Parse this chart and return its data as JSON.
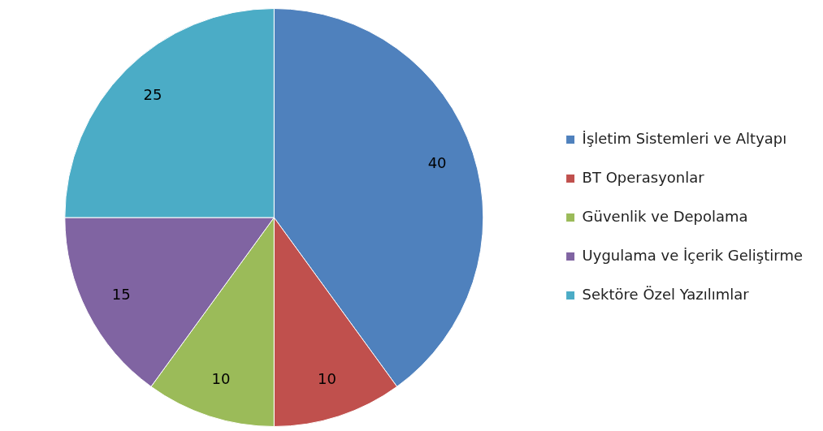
{
  "chart_data": {
    "type": "pie",
    "categories": [
      "İşletim Sistemleri ve Altyapı",
      "BT Operasyonlar",
      "Güvenlik ve Depolama",
      "Uygulama ve İçerik Geliştirme",
      "Sektöre Özel Yazılımlar"
    ],
    "values": [
      40,
      10,
      10,
      15,
      25
    ],
    "colors": [
      "#4f81bd",
      "#c0504d",
      "#9bbb59",
      "#8064a2",
      "#4bacc6"
    ],
    "data_labels": true,
    "legend": "right"
  }
}
